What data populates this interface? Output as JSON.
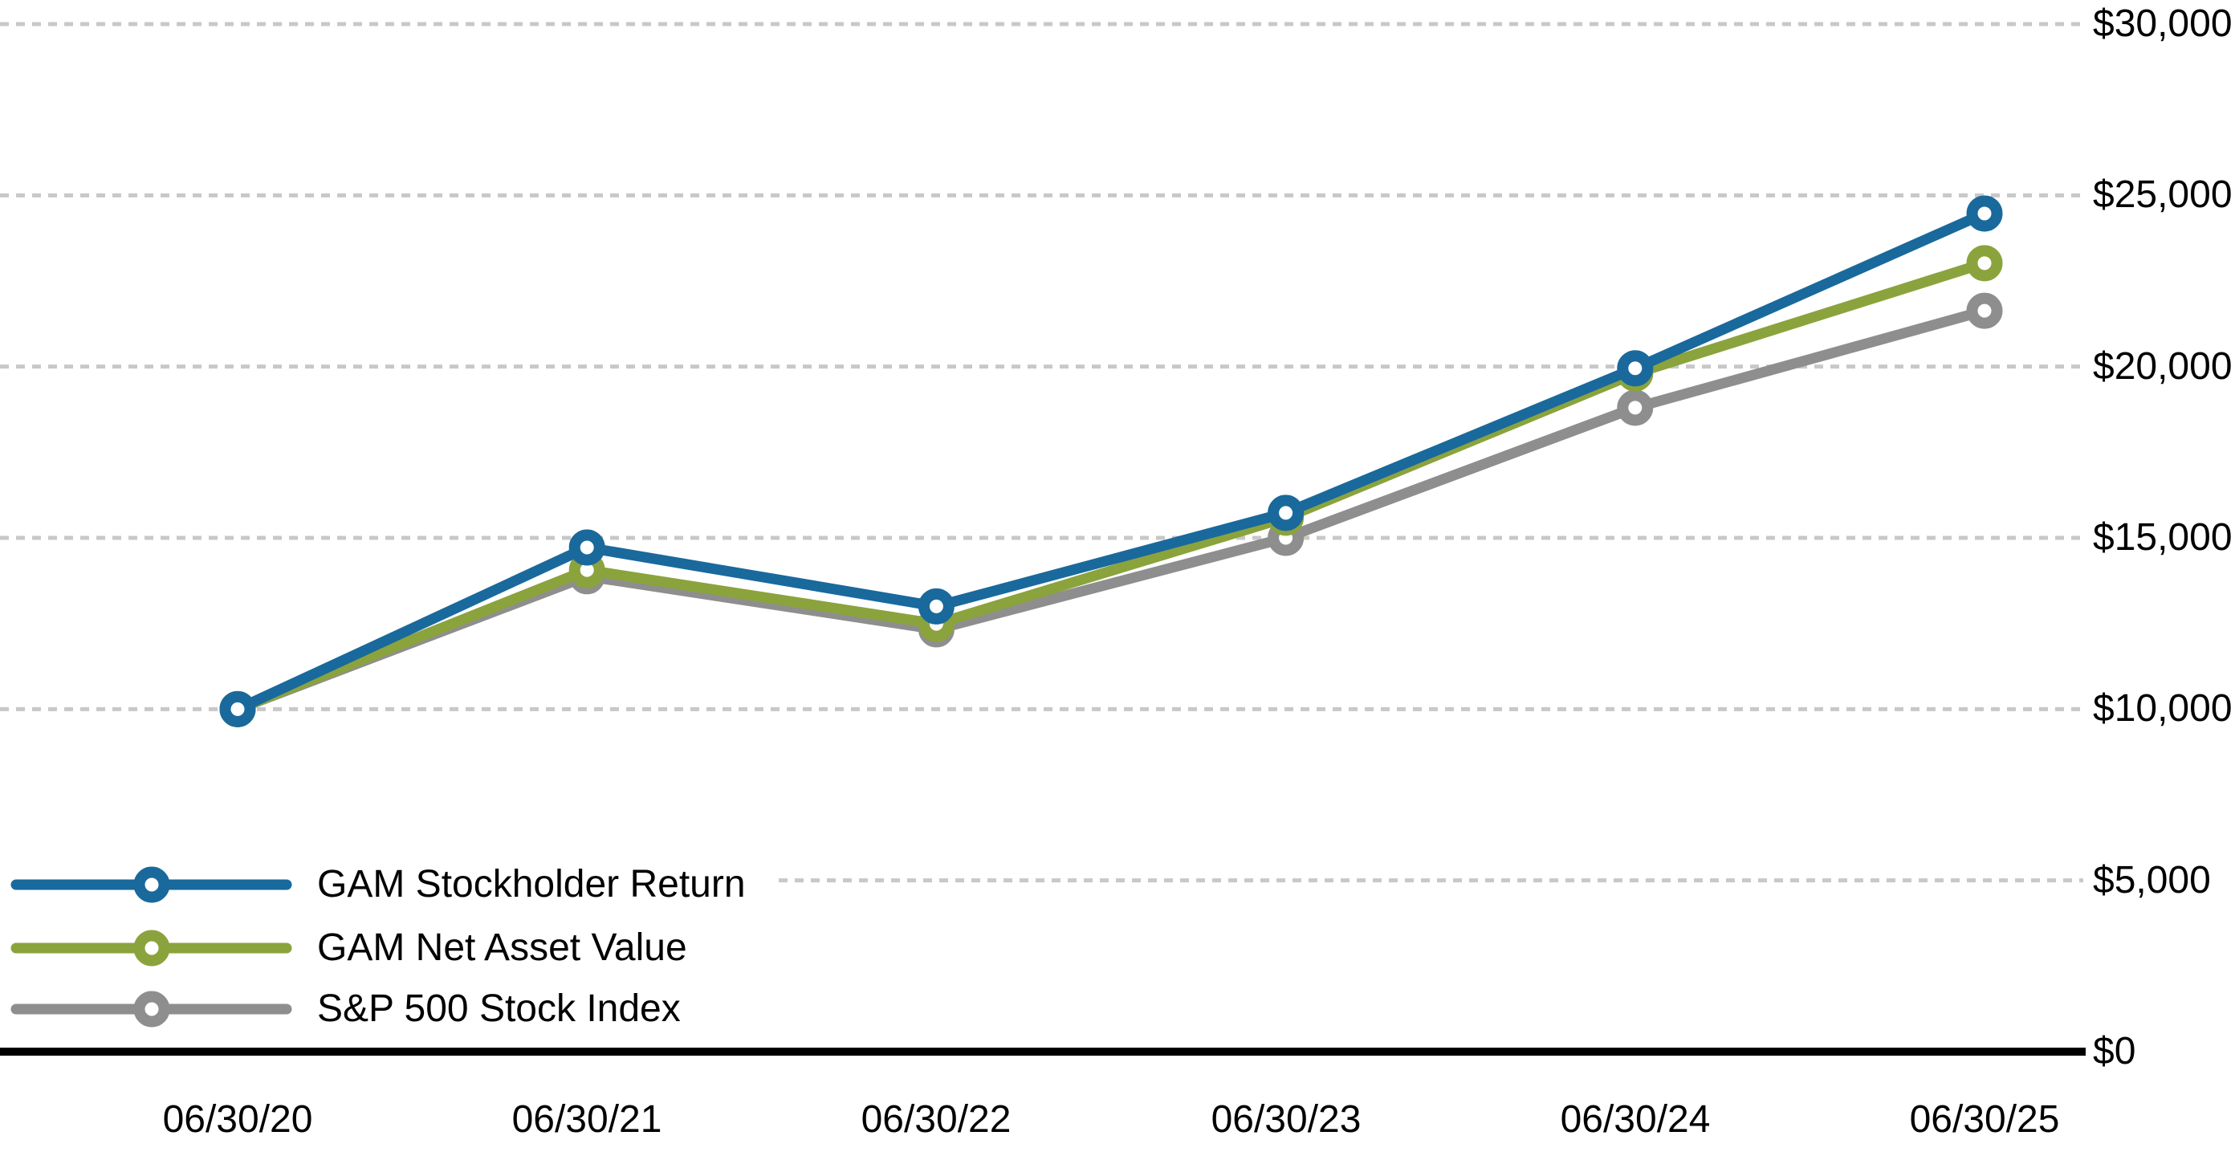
{
  "chart_data": {
    "type": "line",
    "x_labels": [
      "06/30/20",
      "06/30/21",
      "06/30/22",
      "06/30/23",
      "06/30/24",
      "06/30/25"
    ],
    "y_axis": {
      "min": 0,
      "max": 30000,
      "step": 5000,
      "ticks": [
        {
          "value": 0,
          "label": "$0"
        },
        {
          "value": 5000,
          "label": "$5,000"
        },
        {
          "value": 10000,
          "label": "$10,000"
        },
        {
          "value": 15000,
          "label": "$15,000"
        },
        {
          "value": 20000,
          "label": "$20,000"
        },
        {
          "value": 25000,
          "label": "$25,000"
        },
        {
          "value": 30000,
          "label": "$30,000"
        }
      ]
    },
    "series": [
      {
        "name": "GAM Stockholder Return",
        "color": "#19699C",
        "values": [
          10000,
          14720,
          13000,
          15730,
          19950,
          24470
        ]
      },
      {
        "name": "GAM Net Asset Value",
        "color": "#8BA33C",
        "values": [
          10000,
          14060,
          12490,
          15590,
          19800,
          23020
        ]
      },
      {
        "name": "S&P 500 Stock Index",
        "color": "#8E8E8E",
        "values": [
          10000,
          13880,
          12330,
          15000,
          18800,
          21630
        ]
      }
    ],
    "legend_position": "bottom-left",
    "grid": "horizontal-dashed",
    "grid_color": "#C8C8C8",
    "axis_color": "#000000",
    "marker_style": "donut",
    "background": "#FFFFFF"
  }
}
